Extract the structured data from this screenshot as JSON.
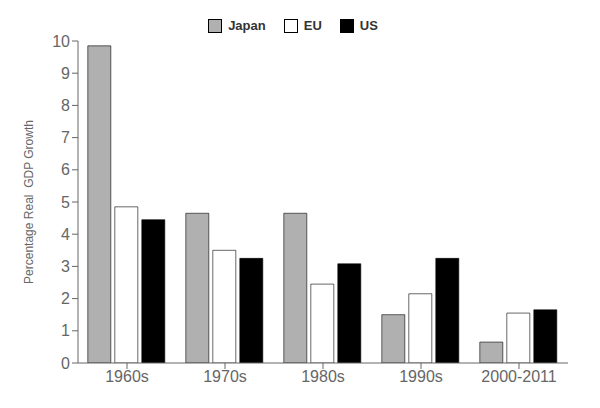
{
  "chart_data": {
    "type": "bar",
    "categories": [
      "1960s",
      "1970s",
      "1980s",
      "1990s",
      "2000-2011"
    ],
    "series": [
      {
        "name": "Japan",
        "color": "#b0b0b0",
        "values": [
          9.85,
          4.65,
          4.65,
          1.5,
          0.65
        ]
      },
      {
        "name": "EU",
        "color": "#ffffff",
        "values": [
          4.85,
          3.5,
          2.45,
          2.15,
          1.55
        ]
      },
      {
        "name": "US",
        "color": "#000000",
        "values": [
          4.45,
          3.25,
          3.08,
          3.25,
          1.65
        ]
      }
    ],
    "y_label": "Percentage Real  GDP Growth",
    "ylim": [
      0,
      10
    ],
    "yticks": [
      0,
      1,
      2,
      3,
      4,
      5,
      6,
      7,
      8,
      9,
      10
    ],
    "grid": false,
    "legend": "top"
  }
}
